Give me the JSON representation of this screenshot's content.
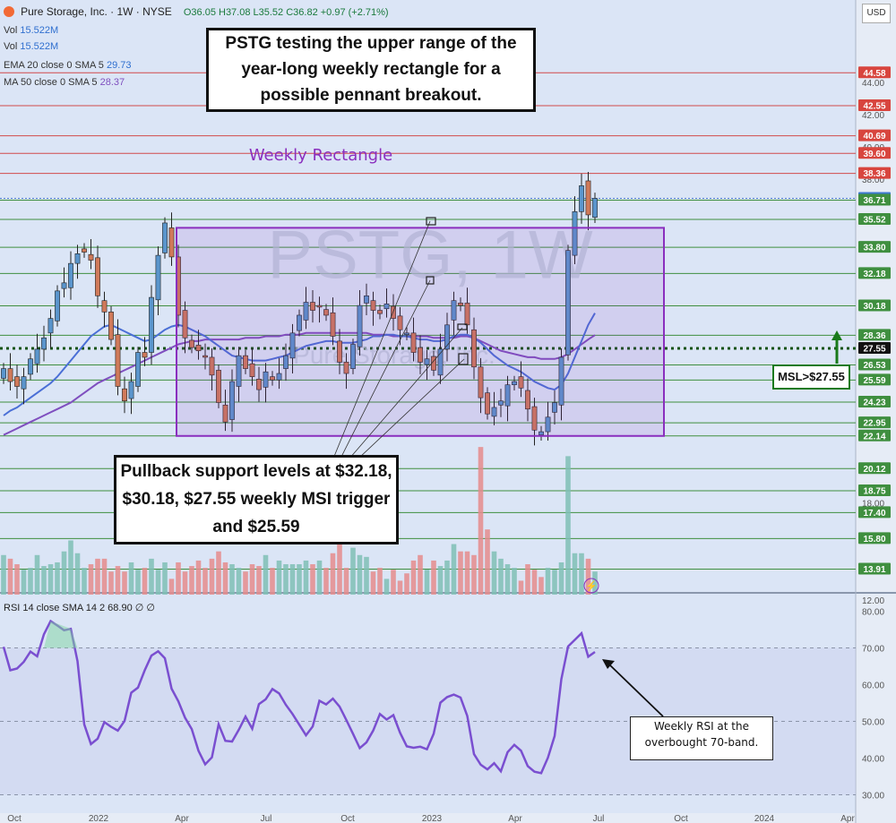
{
  "header": {
    "title": "Pure Storage, Inc. · 1W · NYSE",
    "ohlc": "O36.05 H37.08 L35.52 C36.82 +0.97 (+2.71%)",
    "vol1_label": "Vol",
    "vol1_value": "15.522M",
    "vol2_label": "Vol",
    "vol2_value": "15.522M",
    "ema_label": "EMA 20 close 0 SMA 5",
    "ema_value": "29.73",
    "ma_label": "MA 50 close 0 SMA 5",
    "ma_value": "28.37"
  },
  "currency": "USD",
  "rsi_header": "RSI 14 close SMA 14 2  68.90  ∅  ∅",
  "annotations": {
    "top_box": "PSTG testing the upper range of the year-long weekly rectangle for a possible pennant breakout.",
    "rectangle_label": "Weekly Rectangle",
    "watermark": "PSTG, 1W",
    "watermark2": "Pure Storage, Inc.",
    "support_box": "Pullback support levels at $32.18, $30.18, $27.55 weekly MSI trigger and $25.59",
    "msl_label": "MSL>$27.55",
    "rsi_note": "Weekly RSI at the overbought 70-band."
  },
  "chart_data": [
    {
      "type": "candlestick",
      "timeframe": "1W",
      "x_ticks": [
        "Oct",
        "2022",
        "Apr",
        "Jul",
        "Oct",
        "2023",
        "Apr",
        "Jul",
        "Oct",
        "2024",
        "Apr"
      ],
      "y_ticks": [
        12.0,
        18.0,
        38.0,
        40.0,
        42.0,
        44.0
      ],
      "price_levels": [
        44.58,
        42.55,
        40.69,
        39.6,
        38.36,
        36.82,
        36.71,
        35.52,
        33.8,
        32.18,
        30.18,
        28.36,
        27.55,
        26.53,
        25.59,
        24.23,
        22.95,
        22.14,
        20.12,
        18.75,
        17.4,
        15.8,
        13.91
      ],
      "rectangle": {
        "top": 35.0,
        "bottom": 22.14
      },
      "msl_trigger": 27.55,
      "close_series": [
        26.3,
        25.5,
        25.2,
        25.8,
        26.9,
        27.5,
        28.2,
        29.4,
        31.1,
        31.6,
        32.8,
        33.4,
        33.5,
        33.0,
        30.8,
        29.8,
        28.1,
        25.2,
        24.3,
        25.5,
        27.3,
        27.0,
        30.7,
        33.3,
        35.3,
        33.2,
        29.6,
        28.2,
        27.6,
        27.4,
        27.0,
        25.9,
        24.2,
        23.0,
        25.5,
        27.1,
        26.3,
        25.8,
        25.0,
        26.1,
        25.6,
        26.0,
        27.1,
        28.5,
        29.6,
        30.4,
        29.9,
        30.1,
        29.6,
        28.3,
        26.7,
        26.0,
        27.8,
        30.2,
        30.8,
        29.9,
        29.7,
        30.3,
        29.4,
        28.7,
        28.5,
        27.3,
        26.7,
        26.9,
        26.2,
        27.5,
        29.0,
        30.5,
        30.2,
        29.0,
        26.4,
        24.5,
        23.5,
        23.9,
        24.3,
        25.3,
        25.5,
        25.1,
        23.8,
        22.5,
        22.4,
        23.3,
        24.2,
        27.0,
        33.6,
        36.0,
        37.6,
        35.8,
        36.82
      ],
      "volume_series": [
        14.8,
        14.6,
        14.3,
        14.0,
        14.1,
        14.8,
        14.2,
        14.3,
        14.4,
        15.0,
        15.6,
        14.9,
        14.1,
        14.3,
        14.6,
        14.6,
        13.9,
        14.2,
        13.9,
        14.4,
        14.0,
        14.1,
        14.6,
        14.0,
        14.4,
        13.5,
        14.4,
        13.9,
        14.2,
        14.5,
        14.1,
        14.6,
        15.0,
        14.4,
        14.3,
        14.1,
        13.9,
        14.3,
        14.2,
        14.8,
        14.1,
        14.5,
        14.3,
        14.3,
        14.3,
        14.5,
        14.3,
        14.5,
        14.1,
        14.9,
        17.0,
        14.1,
        15.2,
        14.8,
        14.7,
        13.9,
        14.1,
        13.5,
        14.0,
        13.4,
        13.8,
        14.5,
        14.8,
        14.0,
        14.5,
        14.2,
        14.5,
        15.4,
        15.0,
        15.0,
        14.8,
        20.7,
        16.2,
        15.0,
        14.6,
        14.3,
        14.1,
        13.4,
        14.3,
        14.0,
        13.6,
        14.1,
        14.0,
        14.4,
        20.2,
        14.9,
        14.9,
        14.6,
        13.9
      ],
      "ema20": [
        23.4,
        23.7,
        23.9,
        24.2,
        24.5,
        24.8,
        25.1,
        25.4,
        25.8,
        26.3,
        26.8,
        27.3,
        27.8,
        28.3,
        28.6,
        28.9,
        29.0,
        28.8,
        28.6,
        28.4,
        28.2,
        28.0,
        28.1,
        28.4,
        28.7,
        28.9,
        29.0,
        28.9,
        28.7,
        28.5,
        28.3,
        28.0,
        27.7,
        27.4,
        27.1,
        27.0,
        26.9,
        26.8,
        26.8,
        26.8,
        26.9,
        27.0,
        27.1,
        27.3,
        27.5,
        27.7,
        27.8,
        27.9,
        28.0,
        28.0,
        27.9,
        27.9,
        27.9,
        28.0,
        28.1,
        28.3,
        28.3,
        28.4,
        28.4,
        28.3,
        28.3,
        28.2,
        28.1,
        28.1,
        28.0,
        28.0,
        28.1,
        28.3,
        28.4,
        28.4,
        28.2,
        27.9,
        27.5,
        27.1,
        26.8,
        26.5,
        26.3,
        26.1,
        25.8,
        25.5,
        25.3,
        25.1,
        25.0,
        25.3,
        26.0,
        27.0,
        28.0,
        29.0,
        29.73
      ],
      "ma50": [
        22.2,
        22.4,
        22.6,
        22.8,
        23.0,
        23.2,
        23.4,
        23.6,
        23.8,
        24.0,
        24.2,
        24.5,
        24.8,
        25.1,
        25.4,
        25.6,
        25.8,
        26.0,
        26.2,
        26.4,
        26.6,
        26.8,
        27.0,
        27.2,
        27.4,
        27.6,
        27.8,
        27.9,
        28.0,
        28.0,
        28.1,
        28.1,
        28.1,
        28.1,
        28.1,
        28.1,
        28.2,
        28.2,
        28.2,
        28.3,
        28.3,
        28.3,
        28.4,
        28.4,
        28.4,
        28.5,
        28.5,
        28.5,
        28.5,
        28.5,
        28.5,
        28.5,
        28.5,
        28.5,
        28.5,
        28.4,
        28.4,
        28.4,
        28.3,
        28.3,
        28.3,
        28.3,
        28.3,
        28.3,
        28.2,
        28.2,
        28.2,
        28.2,
        28.3,
        28.3,
        28.2,
        28.0,
        27.8,
        27.6,
        27.4,
        27.3,
        27.2,
        27.1,
        27.0,
        27.0,
        26.9,
        26.9,
        26.9,
        27.0,
        27.2,
        27.5,
        27.8,
        28.1,
        28.37
      ],
      "colors": {
        "up": "#5a95cc",
        "down": "#d07a5a",
        "vol_up": "#7fbfb5",
        "vol_down": "#e58c8c",
        "ema": "#4a6fd6",
        "ma": "#7f4fbf",
        "rectangle": "#8a2fbe",
        "msl": "#1a7a1a"
      }
    },
    {
      "type": "line",
      "name": "RSI 14",
      "y_ticks": [
        30.0,
        40.0,
        50.0,
        60.0,
        70.0,
        80.0
      ],
      "ylim": [
        25,
        85
      ],
      "bands": [
        30,
        70
      ],
      "values": [
        70.3,
        63.9,
        64.4,
        66.2,
        69.0,
        67.7,
        73.7,
        77.3,
        76.1,
        74.8,
        75.2,
        66.4,
        49.2,
        43.8,
        45.3,
        49.8,
        48.5,
        47.5,
        50.1,
        57.8,
        59.2,
        63.9,
        67.9,
        69.1,
        67.2,
        58.9,
        55.5,
        51.0,
        47.9,
        42.0,
        38.3,
        40.2,
        49.2,
        44.7,
        44.5,
        47.7,
        51.3,
        48.0,
        54.7,
        56.0,
        58.8,
        57.6,
        54.5,
        52.0,
        49.1,
        46.2,
        48.6,
        55.6,
        54.6,
        56.2,
        54.0,
        50.4,
        46.6,
        42.7,
        44.3,
        47.5,
        52.0,
        50.5,
        51.7,
        46.9,
        43.2,
        42.8,
        43.1,
        42.4,
        46.6,
        55.1,
        56.6,
        57.3,
        56.5,
        51.5,
        41.1,
        38.2,
        36.9,
        38.6,
        36.4,
        41.6,
        43.6,
        42.0,
        37.8,
        36.3,
        35.9,
        40.1,
        46.0,
        61.5,
        70.4,
        72.2,
        74.0,
        67.6,
        68.9
      ]
    }
  ]
}
